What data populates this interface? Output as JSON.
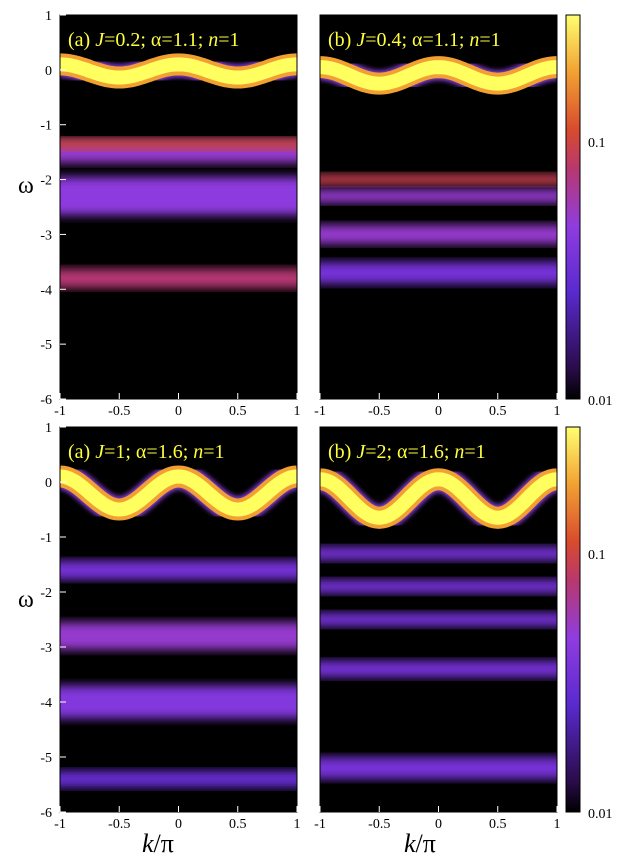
{
  "chart_data": [
    {
      "type": "heatmap",
      "title_label": "(a)",
      "J": "0.2",
      "alpha": "1.1",
      "n": "1",
      "xlim": [
        -1,
        1
      ],
      "ylim": [
        -6,
        1
      ],
      "xticks": [
        "-1",
        "-0.5",
        "0",
        "0.5",
        "1"
      ],
      "yticks": [
        "1",
        "0",
        "-1",
        "-2",
        "-3",
        "-4",
        "-5",
        "-6"
      ],
      "band_center": -0.02,
      "band_amp": 0.12,
      "band_freq": 2,
      "band_phase": 0,
      "features": [
        {
          "y": -1.5,
          "width": 0.4,
          "intensity": 0.05
        },
        {
          "y": -1.35,
          "width": 0.2,
          "intensity": 0.1
        },
        {
          "y": -2.3,
          "width": 0.7,
          "intensity": 0.045
        },
        {
          "y": -3.8,
          "width": 0.35,
          "intensity": 0.075
        }
      ]
    },
    {
      "type": "heatmap",
      "title_label": "(b)",
      "J": "0.4",
      "alpha": "1.1",
      "n": "1",
      "xlim": [
        -1,
        1
      ],
      "ylim": [
        -6,
        1
      ],
      "xticks": [
        "-1",
        "-0.5",
        "0",
        "0.5",
        "1"
      ],
      "yticks": [],
      "band_center": -0.1,
      "band_amp": 0.15,
      "band_freq": 2,
      "band_phase": 0,
      "features": [
        {
          "y": -2.0,
          "width": 0.2,
          "intensity": 0.09
        },
        {
          "y": -2.3,
          "width": 0.25,
          "intensity": 0.05
        },
        {
          "y": -3.0,
          "width": 0.35,
          "intensity": 0.05
        },
        {
          "y": -3.7,
          "width": 0.4,
          "intensity": 0.035
        }
      ]
    },
    {
      "type": "heatmap",
      "title_label": "(a)",
      "J": "1",
      "alpha": "1.6",
      "n": "1",
      "xlim": [
        -1,
        1
      ],
      "ylim": [
        -6,
        1
      ],
      "xticks": [
        "-1",
        "-0.5",
        "0",
        "0.5",
        "1"
      ],
      "yticks": [
        "1",
        "0",
        "-1",
        "-2",
        "-3",
        "-4",
        "-5",
        "-6"
      ],
      "band_center": -0.2,
      "band_amp": 0.3,
      "band_freq": 2,
      "band_phase": 0,
      "features": [
        {
          "y": -1.6,
          "width": 0.35,
          "intensity": 0.035
        },
        {
          "y": -2.8,
          "width": 0.5,
          "intensity": 0.05
        },
        {
          "y": -4.0,
          "width": 0.6,
          "intensity": 0.04
        },
        {
          "y": -5.4,
          "width": 0.3,
          "intensity": 0.03
        }
      ]
    },
    {
      "type": "heatmap",
      "title_label": "(b)",
      "J": "2",
      "alpha": "1.6",
      "n": "1",
      "xlim": [
        -1,
        1
      ],
      "ylim": [
        -6,
        1
      ],
      "xticks": [
        "-1",
        "-0.5",
        "0",
        "0.5",
        "1"
      ],
      "yticks": [],
      "band_center": -0.3,
      "band_amp": 0.35,
      "band_freq": 2,
      "band_phase": 0,
      "features": [
        {
          "y": -1.3,
          "width": 0.25,
          "intensity": 0.035
        },
        {
          "y": -1.9,
          "width": 0.25,
          "intensity": 0.035
        },
        {
          "y": -2.5,
          "width": 0.25,
          "intensity": 0.035
        },
        {
          "y": -3.4,
          "width": 0.3,
          "intensity": 0.035
        },
        {
          "y": -5.2,
          "width": 0.4,
          "intensity": 0.035
        }
      ]
    }
  ],
  "axes": {
    "ylabel": "ω",
    "xlabel_k": "k",
    "xlabel_rest": "/π"
  },
  "colorbar": {
    "scale": "log",
    "range": [
      0.01,
      0.3
    ],
    "ticks": [
      "0.1",
      "0.01"
    ],
    "colors": [
      "#000000",
      "#2a0c4a",
      "#6a30d8",
      "#9a3fe0",
      "#d0383a",
      "#e06a2c",
      "#f5b030",
      "#ffff6a"
    ]
  }
}
